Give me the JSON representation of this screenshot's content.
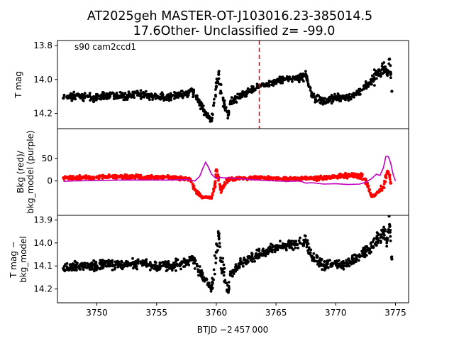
{
  "figure": {
    "title_line1": "AT2025geh  MASTER-OT-J103016.23-385014.5",
    "title_line2": "17.6Other- Unclassified z= -99.0",
    "xlabel": "BTJD −2 457 000",
    "annotation": "s90 cam2ccd1"
  },
  "chart_data": [
    {
      "type": "scatter",
      "panel": "top",
      "ylabel": "T mag",
      "ylim": [
        14.29,
        13.77
      ],
      "y_inverted": true,
      "xlim": [
        3746.7,
        3776.1
      ],
      "yticks": [
        "13.8",
        "14.0",
        "14.2"
      ],
      "ytick_values": [
        13.8,
        14.0,
        14.2
      ],
      "vline": {
        "x": 3763.6,
        "style": "dashed",
        "color": "#ff0000"
      },
      "series": [
        {
          "color": "#000000",
          "x": [
            3747.2,
            3748.0,
            3749.0,
            3750.0,
            3751.0,
            3752.0,
            3753.0,
            3754.0,
            3755.0,
            3756.0,
            3757.0,
            3757.6,
            3758.0,
            3758.4,
            3758.6,
            3758.8,
            3759.6,
            3760.0,
            3760.2,
            3760.4,
            3761.0,
            3761.2,
            3762.0,
            3763.0,
            3764.0,
            3765.0,
            3766.0,
            3767.0,
            3767.5,
            3768.0,
            3769.0,
            3770.0,
            3771.0,
            3772.0,
            3772.8,
            3774.0,
            3774.3,
            3774.5,
            3774.7
          ],
          "y": [
            14.11,
            14.1,
            14.1,
            14.11,
            14.09,
            14.1,
            14.09,
            14.09,
            14.1,
            14.1,
            14.09,
            14.08,
            14.07,
            14.11,
            14.14,
            14.16,
            14.24,
            14.04,
            13.97,
            14.08,
            14.21,
            14.13,
            14.1,
            14.06,
            14.03,
            14.01,
            14.0,
            13.99,
            13.97,
            14.1,
            14.13,
            14.11,
            14.11,
            14.07,
            14.02,
            13.93,
            13.97,
            13.88,
            14.07
          ],
          "spread": [
            0.03,
            0.03,
            0.03,
            0.03,
            0.03,
            0.03,
            0.03,
            0.03,
            0.03,
            0.03,
            0.03,
            0.03,
            0.03,
            0.04,
            0.04,
            0.04,
            0.03,
            0.1,
            0.05,
            0.08,
            0.04,
            0.03,
            0.03,
            0.03,
            0.03,
            0.03,
            0.03,
            0.03,
            0.04,
            0.04,
            0.03,
            0.03,
            0.03,
            0.03,
            0.04,
            0.08,
            0.06,
            0.1,
            0.06
          ]
        }
      ]
    },
    {
      "type": "scatter",
      "panel": "middle",
      "ylabel": "Bkg (red)/\nbkg_model (purple)",
      "ylim": [
        -77,
        117
      ],
      "xlim": [
        3746.7,
        3776.1
      ],
      "yticks": [
        "0",
        "50"
      ],
      "ytick_values": [
        0,
        50
      ],
      "series": [
        {
          "color": "#ff0000",
          "x": [
            3747.2,
            3748.0,
            3749.0,
            3750.0,
            3751.0,
            3752.0,
            3753.0,
            3754.0,
            3755.0,
            3756.0,
            3757.0,
            3757.8,
            3758.2,
            3758.6,
            3758.9,
            3759.6,
            3759.9,
            3760.0,
            3760.2,
            3760.4,
            3761.0,
            3762.0,
            3763.0,
            3764.0,
            3765.0,
            3766.0,
            3767.0,
            3768.0,
            3769.0,
            3770.0,
            3771.0,
            3772.0,
            3772.5,
            3772.8,
            3773.0,
            3774.0,
            3774.2,
            3774.4,
            3774.6
          ],
          "y": [
            7,
            7,
            8,
            8,
            9,
            9,
            9,
            8,
            8,
            8,
            6,
            4,
            -20,
            -33,
            -37,
            -37,
            -5,
            25,
            8,
            -20,
            4,
            6,
            7,
            6,
            6,
            5,
            5,
            6,
            7,
            10,
            12,
            12,
            3,
            -20,
            -35,
            -15,
            10,
            20,
            -5
          ],
          "spread": [
            6,
            6,
            6,
            6,
            7,
            7,
            6,
            7,
            6,
            6,
            5,
            6,
            8,
            6,
            4,
            4,
            20,
            12,
            15,
            12,
            7,
            6,
            6,
            6,
            6,
            6,
            6,
            7,
            7,
            7,
            9,
            10,
            10,
            8,
            5,
            15,
            10,
            12,
            15
          ]
        },
        {
          "color": "#bf00bf",
          "x": [
            3747.2,
            3748.0,
            3750.0,
            3752.0,
            3754.0,
            3756.0,
            3757.5,
            3758.2,
            3758.6,
            3758.9,
            3759.1,
            3759.3,
            3759.6,
            3760.0,
            3760.3,
            3760.6,
            3761.0,
            3762.0,
            3764.0,
            3766.0,
            3767.0,
            3767.5,
            3768.0,
            3769.0,
            3770.0,
            3771.0,
            3772.0,
            3772.5,
            3773.0,
            3773.4,
            3773.7,
            3774.0,
            3774.2,
            3774.4,
            3774.6,
            3774.8,
            3775.0
          ],
          "y": [
            -1,
            0,
            1,
            2,
            2,
            2,
            3,
            0,
            10,
            30,
            42,
            33,
            15,
            5,
            8,
            7,
            7,
            5,
            1,
            -1,
            0,
            -5,
            -4,
            -7,
            -6,
            -8,
            -7,
            -3,
            5,
            15,
            12,
            30,
            55,
            55,
            40,
            15,
            0
          ]
        }
      ]
    },
    {
      "type": "scatter",
      "panel": "bottom",
      "ylabel": "T mag −\nbkg_model",
      "ylim": [
        14.26,
        13.88
      ],
      "y_inverted": true,
      "xlim": [
        3746.7,
        3776.1
      ],
      "yticks": [
        "13.9",
        "14.0",
        "14.1",
        "14.2"
      ],
      "ytick_values": [
        13.9,
        14.0,
        14.1,
        14.2
      ],
      "xticks": [
        "3750",
        "3755",
        "3760",
        "3765",
        "3770",
        "3775"
      ],
      "xtick_values": [
        3750,
        3755,
        3760,
        3765,
        3770,
        3775
      ],
      "series": [
        {
          "color": "#000000",
          "x": [
            3747.2,
            3748.0,
            3749.0,
            3750.0,
            3751.0,
            3752.0,
            3753.0,
            3754.0,
            3755.0,
            3756.0,
            3757.0,
            3757.6,
            3758.0,
            3758.4,
            3758.8,
            3759.6,
            3760.0,
            3760.2,
            3760.4,
            3761.0,
            3761.2,
            3762.0,
            3763.0,
            3764.0,
            3765.0,
            3766.0,
            3767.0,
            3767.5,
            3768.0,
            3769.0,
            3770.0,
            3771.0,
            3772.0,
            3772.8,
            3774.0,
            3774.3,
            3774.5,
            3774.7
          ],
          "y": [
            14.11,
            14.1,
            14.1,
            14.1,
            14.09,
            14.1,
            14.09,
            14.09,
            14.1,
            14.1,
            14.09,
            14.08,
            14.07,
            14.1,
            14.14,
            14.2,
            14.04,
            13.97,
            14.08,
            14.21,
            14.14,
            14.09,
            14.06,
            14.04,
            14.02,
            14.01,
            14.0,
            13.99,
            14.06,
            14.1,
            14.09,
            14.09,
            14.06,
            14.03,
            13.96,
            13.99,
            13.92,
            14.07
          ],
          "spread": [
            0.03,
            0.03,
            0.03,
            0.03,
            0.03,
            0.03,
            0.03,
            0.03,
            0.03,
            0.03,
            0.03,
            0.03,
            0.03,
            0.04,
            0.04,
            0.03,
            0.1,
            0.05,
            0.08,
            0.04,
            0.03,
            0.03,
            0.03,
            0.03,
            0.03,
            0.03,
            0.03,
            0.04,
            0.04,
            0.03,
            0.03,
            0.03,
            0.03,
            0.04,
            0.07,
            0.06,
            0.08,
            0.06
          ]
        }
      ]
    }
  ]
}
